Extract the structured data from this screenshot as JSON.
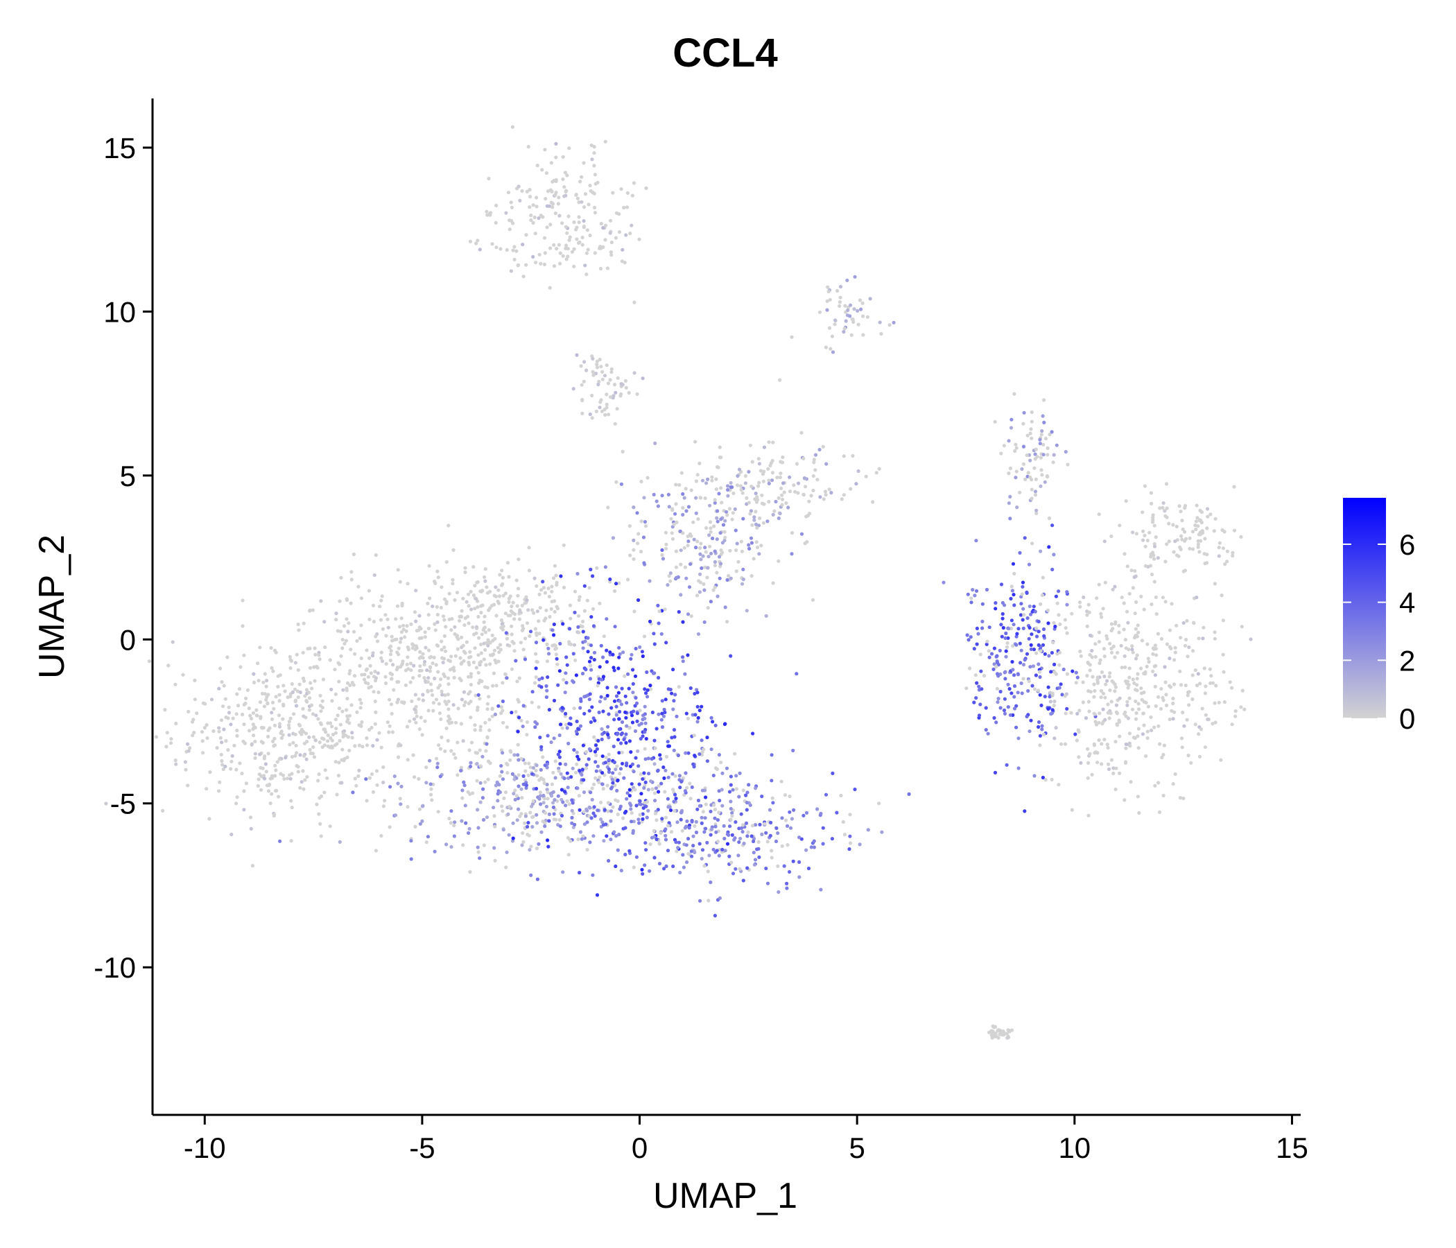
{
  "chart_data": {
    "type": "scatter",
    "title": "CCL4",
    "xlabel": "UMAP_1",
    "ylabel": "UMAP_2",
    "xlim": [
      -11.2,
      15.2
    ],
    "ylim": [
      -14.5,
      16.5
    ],
    "x_ticks": [
      -10,
      -5,
      0,
      5,
      10,
      15
    ],
    "x_tick_labels": [
      "-10",
      "-5",
      "0",
      "5",
      "10",
      "15"
    ],
    "y_ticks": [
      -10,
      -5,
      0,
      5,
      10,
      15
    ],
    "y_tick_labels": [
      "-10",
      "-5",
      "0",
      "5",
      "10",
      "15"
    ],
    "colorbar": {
      "min": 0,
      "max": 7.6,
      "ticks": [
        0,
        2,
        4,
        6
      ],
      "tick_labels": [
        "0",
        "2",
        "4",
        "6"
      ],
      "low_color": "#d3d3d3",
      "high_color": "#0000ff"
    },
    "point_color_default": "#d3d3d3",
    "clusters": [
      {
        "name": "left-blob",
        "center": [
          -8.2,
          -3.0
        ],
        "spread": [
          1.2,
          1.3
        ],
        "expression": 0.5
      },
      {
        "name": "upper-left-body",
        "center": [
          -5.2,
          -1.0
        ],
        "spread": [
          1.5,
          1.3
        ],
        "expression": 0.4
      },
      {
        "name": "ridge",
        "center": [
          -3.0,
          0.8
        ],
        "spread": [
          1.1,
          0.8
        ],
        "expression": 0.4
      },
      {
        "name": "lower-mid",
        "center": [
          -2.3,
          -4.8
        ],
        "spread": [
          1.8,
          0.9
        ],
        "expression": 2.2
      },
      {
        "name": "high-core",
        "center": [
          -0.6,
          -2.5
        ],
        "spread": [
          1.1,
          1.8
        ],
        "expression": 4.3
      },
      {
        "name": "lower-right-tail",
        "center": [
          1.9,
          -5.8
        ],
        "spread": [
          1.3,
          0.9
        ],
        "expression": 3.2
      },
      {
        "name": "bridge",
        "center": [
          1.5,
          3.2
        ],
        "spread": [
          0.9,
          1.1
        ],
        "expression": 2.0
      },
      {
        "name": "upper-arm",
        "center": [
          3.3,
          4.9
        ],
        "spread": [
          0.9,
          0.5
        ],
        "expression": 1.3
      },
      {
        "name": "top-cluster",
        "center": [
          -1.8,
          12.9
        ],
        "spread": [
          0.9,
          0.9
        ],
        "expression": 0.6
      },
      {
        "name": "neck",
        "center": [
          -0.7,
          7.7
        ],
        "spread": [
          0.35,
          0.7
        ],
        "expression": 0.6
      },
      {
        "name": "upper-right-stalk",
        "center": [
          4.7,
          9.8
        ],
        "spread": [
          0.4,
          0.5
        ],
        "expression": 1.3
      },
      {
        "name": "right-high",
        "center": [
          8.8,
          -0.5
        ],
        "spread": [
          0.7,
          1.4
        ],
        "expression": 4.1
      },
      {
        "name": "right-blob",
        "center": [
          11.3,
          -1.5
        ],
        "spread": [
          1.1,
          1.5
        ],
        "expression": 0.5
      },
      {
        "name": "right-arm",
        "center": [
          12.5,
          3.2
        ],
        "spread": [
          0.8,
          0.6
        ],
        "expression": 0.4
      },
      {
        "name": "right-stalk",
        "center": [
          9.0,
          5.5
        ],
        "spread": [
          0.35,
          0.9
        ],
        "expression": 1.8
      },
      {
        "name": "bottom-outlier",
        "center": [
          8.3,
          -12.0
        ],
        "spread": [
          0.15,
          0.1
        ],
        "expression": 0.2
      }
    ]
  }
}
